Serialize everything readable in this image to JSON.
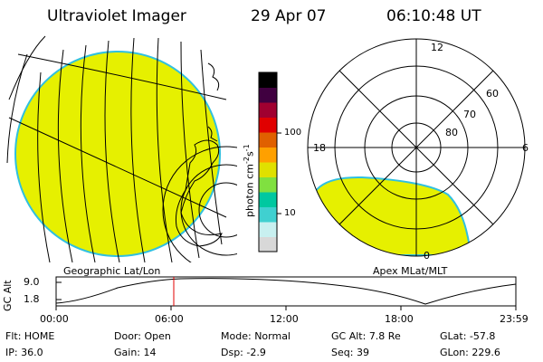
{
  "header": {
    "title": "Ultraviolet Imager",
    "date": "29 Apr 07",
    "time": "06:10:48 UT"
  },
  "colorbar": {
    "unit_label_prefix": "photon cm",
    "unit_exp1": "-2",
    "unit_mid": "s",
    "unit_exp2": "-1",
    "ticks": [
      "100",
      "10"
    ],
    "colors": [
      "#d8d8d8",
      "#c8f0f0",
      "#40d0d0",
      "#00c8a0",
      "#80e040",
      "#e0e000",
      "#ffa000",
      "#e06000",
      "#e00000",
      "#a00030",
      "#400040",
      "#000000"
    ]
  },
  "panels": {
    "left_label": "Geographic Lat/Lon",
    "right_label": "Apex MLat/MLT",
    "fill_color": "#e6f000",
    "edge_color": "#30c0e0"
  },
  "polar": {
    "hour_labels": {
      "top": "12",
      "left": "18",
      "right": "6",
      "bottom": "0"
    },
    "lat_labels": [
      "60",
      "70",
      "80"
    ]
  },
  "altitude_plot": {
    "axis_label": "GC Alt",
    "y_ticks": [
      "9.0",
      "1.8"
    ],
    "x_ticks": [
      "00:00",
      "06:00",
      "12:00",
      "18:00",
      "23:59"
    ],
    "marker_time": "06:10:48",
    "marker_color": "#e00000"
  },
  "status": {
    "col1": [
      {
        "label": "Flt:",
        "value": "HOME"
      },
      {
        "label": "IP:",
        "value": "36.0"
      }
    ],
    "col2": [
      {
        "label": "Door:",
        "value": "Open"
      },
      {
        "label": "Gain:",
        "value": "14"
      }
    ],
    "col3": [
      {
        "label": "Mode:",
        "value": "Normal"
      },
      {
        "label": "Dsp:",
        "value": "-2.9"
      }
    ],
    "col4": [
      {
        "label": "GC Alt:",
        "value": "7.8 Re"
      },
      {
        "label": "Seq:",
        "value": "39"
      }
    ],
    "col5": [
      {
        "label": "GLat:",
        "value": "-57.8"
      },
      {
        "label": "GLon:",
        "value": "229.6"
      }
    ]
  }
}
